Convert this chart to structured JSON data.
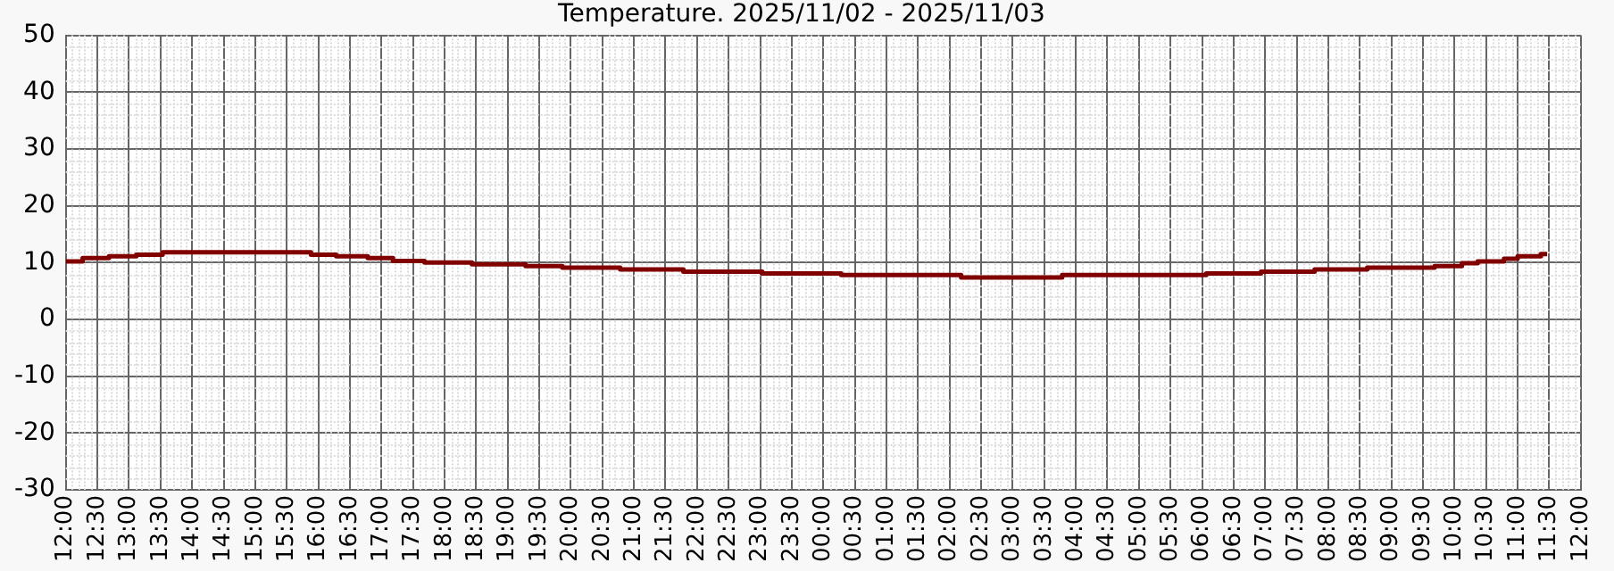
{
  "chart_data": {
    "type": "step",
    "title": "Temperature. 2025/11/02 - 2025/11/03",
    "x": [
      "2025-11-02T12:00",
      "2025-11-02T12:16",
      "2025-11-02T12:41",
      "2025-11-02T13:07",
      "2025-11-02T13:32",
      "2025-11-02T15:53",
      "2025-11-02T16:17",
      "2025-11-02T16:47",
      "2025-11-02T17:11",
      "2025-11-02T17:41",
      "2025-11-02T18:26",
      "2025-11-02T19:17",
      "2025-11-02T19:52",
      "2025-11-02T20:47",
      "2025-11-02T21:47",
      "2025-11-02T23:02",
      "2025-11-03T00:17",
      "2025-11-03T02:11",
      "2025-11-03T03:47",
      "2025-11-03T06:04",
      "2025-11-03T06:56",
      "2025-11-03T07:47",
      "2025-11-03T08:37",
      "2025-11-03T09:41",
      "2025-11-03T10:07",
      "2025-11-03T10:22",
      "2025-11-03T10:47",
      "2025-11-03T11:00",
      "2025-11-03T11:22",
      "2025-11-03T11:28"
    ],
    "series": [
      {
        "color": "#800000",
        "values": [
          10.2,
          10.8,
          11.1,
          11.4,
          11.8,
          11.4,
          11.1,
          10.8,
          10.3,
          10.0,
          9.7,
          9.4,
          9.1,
          8.8,
          8.4,
          8.1,
          7.8,
          7.4,
          7.8,
          8.1,
          8.4,
          8.8,
          9.1,
          9.4,
          9.9,
          10.2,
          10.7,
          11.1,
          11.5,
          11.5
        ]
      }
    ],
    "xlim": [
      "2025-11-02T12:00",
      "2025-11-03T12:00"
    ],
    "xticks": [
      {
        "value": "2025-11-02T12:00",
        "label": "12:00"
      },
      {
        "value": "2025-11-02T12:30",
        "label": "12:30"
      },
      {
        "value": "2025-11-02T13:00",
        "label": "13:00"
      },
      {
        "value": "2025-11-02T13:30",
        "label": "13:30"
      },
      {
        "value": "2025-11-02T14:00",
        "label": "14:00"
      },
      {
        "value": "2025-11-02T14:30",
        "label": "14:30"
      },
      {
        "value": "2025-11-02T15:00",
        "label": "15:00"
      },
      {
        "value": "2025-11-02T15:30",
        "label": "15:30"
      },
      {
        "value": "2025-11-02T16:00",
        "label": "16:00"
      },
      {
        "value": "2025-11-02T16:30",
        "label": "16:30"
      },
      {
        "value": "2025-11-02T17:00",
        "label": "17:00"
      },
      {
        "value": "2025-11-02T17:30",
        "label": "17:30"
      },
      {
        "value": "2025-11-02T18:00",
        "label": "18:00"
      },
      {
        "value": "2025-11-02T18:30",
        "label": "18:30"
      },
      {
        "value": "2025-11-02T19:00",
        "label": "19:00"
      },
      {
        "value": "2025-11-02T19:30",
        "label": "19:30"
      },
      {
        "value": "2025-11-02T20:00",
        "label": "20:00"
      },
      {
        "value": "2025-11-02T20:30",
        "label": "20:30"
      },
      {
        "value": "2025-11-02T21:00",
        "label": "21:00"
      },
      {
        "value": "2025-11-02T21:30",
        "label": "21:30"
      },
      {
        "value": "2025-11-02T22:00",
        "label": "22:00"
      },
      {
        "value": "2025-11-02T22:30",
        "label": "22:30"
      },
      {
        "value": "2025-11-02T23:00",
        "label": "23:00"
      },
      {
        "value": "2025-11-02T23:30",
        "label": "23:30"
      },
      {
        "value": "2025-11-03T00:00",
        "label": "00:00"
      },
      {
        "value": "2025-11-03T00:30",
        "label": "00:30"
      },
      {
        "value": "2025-11-03T01:00",
        "label": "01:00"
      },
      {
        "value": "2025-11-03T01:30",
        "label": "01:30"
      },
      {
        "value": "2025-11-03T02:00",
        "label": "02:00"
      },
      {
        "value": "2025-11-03T02:30",
        "label": "02:30"
      },
      {
        "value": "2025-11-03T03:00",
        "label": "03:00"
      },
      {
        "value": "2025-11-03T03:30",
        "label": "03:30"
      },
      {
        "value": "2025-11-03T04:00",
        "label": "04:00"
      },
      {
        "value": "2025-11-03T04:30",
        "label": "04:30"
      },
      {
        "value": "2025-11-03T05:00",
        "label": "05:00"
      },
      {
        "value": "2025-11-03T05:30",
        "label": "05:30"
      },
      {
        "value": "2025-11-03T06:00",
        "label": "06:00"
      },
      {
        "value": "2025-11-03T06:30",
        "label": "06:30"
      },
      {
        "value": "2025-11-03T07:00",
        "label": "07:00"
      },
      {
        "value": "2025-11-03T07:30",
        "label": "07:30"
      },
      {
        "value": "2025-11-03T08:00",
        "label": "08:00"
      },
      {
        "value": "2025-11-03T08:30",
        "label": "08:30"
      },
      {
        "value": "2025-11-03T09:00",
        "label": "09:00"
      },
      {
        "value": "2025-11-03T09:30",
        "label": "09:30"
      },
      {
        "value": "2025-11-03T10:00",
        "label": "10:00"
      },
      {
        "value": "2025-11-03T10:30",
        "label": "10:30"
      },
      {
        "value": "2025-11-03T11:00",
        "label": "11:00"
      },
      {
        "value": "2025-11-03T11:30",
        "label": "11:30"
      },
      {
        "value": "2025-11-03T12:00",
        "label": "12:00"
      }
    ],
    "ylim": [
      -30,
      50
    ],
    "yticks": [
      -30,
      -20,
      -10,
      0,
      10,
      20,
      30,
      40,
      50
    ],
    "grid": true,
    "marker": "none"
  }
}
